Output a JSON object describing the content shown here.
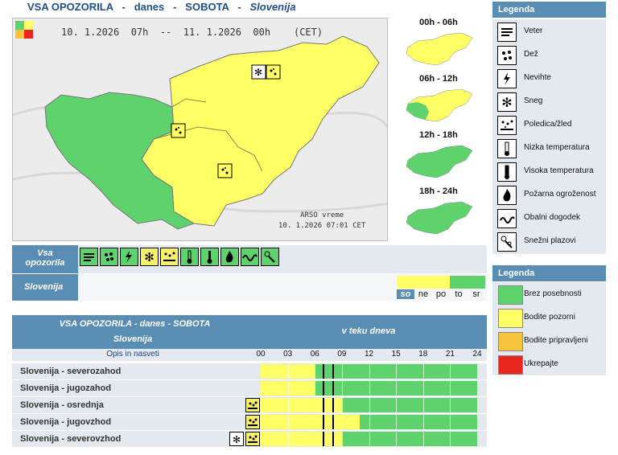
{
  "header": {
    "part1": "VSA OPOZORILA",
    "sep1": "-",
    "part2": "danes",
    "sep2": "-",
    "part3": "SOBOTA",
    "sep3": "-",
    "part4": "Slovenija"
  },
  "map": {
    "date_range": "10. 1.2026  07h  --  11. 1.2026  00h    (CET)",
    "credit_line1": "ARSO vreme",
    "credit_line2": "10. 1.2026  07:01 CET"
  },
  "slots": [
    {
      "label": "00h - 06h"
    },
    {
      "label": "06h - 12h"
    },
    {
      "label": "12h - 18h"
    },
    {
      "label": "18h - 24h"
    }
  ],
  "legend1": {
    "title": "Legenda",
    "items": [
      {
        "label": "Veter",
        "icon": "wind-icon"
      },
      {
        "label": "Dež",
        "icon": "rain-icon"
      },
      {
        "label": "Nevihte",
        "icon": "thunderstorm-icon"
      },
      {
        "label": "Sneg",
        "icon": "snow-icon"
      },
      {
        "label": "Poledica/žled",
        "icon": "ice-icon"
      },
      {
        "label": "Nizka temperatura",
        "icon": "low-temp-icon"
      },
      {
        "label": "Visoka temperatura",
        "icon": "high-temp-icon"
      },
      {
        "label": "Požarna ogroženost",
        "icon": "fire-icon"
      },
      {
        "label": "Obalni dogodek",
        "icon": "coastal-icon"
      },
      {
        "label": "Snežni plazovi",
        "icon": "avalanche-icon"
      }
    ]
  },
  "legend2": {
    "title": "Legenda",
    "items": [
      {
        "label": "Brez posebnosti",
        "color": "#5ed26c"
      },
      {
        "label": "Bodite pozorni",
        "color": "#ffff66"
      },
      {
        "label": "Bodite pripravljeni",
        "color": "#f5c43c"
      },
      {
        "label": "Ukrepajte",
        "color": "#e8251e"
      }
    ]
  },
  "band": {
    "all_line1": "Vsa",
    "all_line2": "opozorila",
    "region": "Slovenija",
    "days": [
      "so",
      "ne",
      "po",
      "to",
      "sr"
    ],
    "selected_day": "so"
  },
  "table": {
    "title_line1": "VSA OPOZORILA - danes - SOBOTA",
    "title_line2": "Slovenija",
    "during_day": "v teku dneva",
    "desc_header": "Opis in nasveti",
    "hours": [
      "00",
      "03",
      "06",
      "09",
      "12",
      "15",
      "18",
      "21",
      "24"
    ],
    "rows": [
      {
        "name": "Slovenija - severozahod",
        "yellow_until": 6,
        "icons": []
      },
      {
        "name": "Slovenija - jugozahod",
        "yellow_until": 6,
        "icons": []
      },
      {
        "name": "Slovenija - osrednja",
        "yellow_until": 9,
        "icons": [
          "ice-icon"
        ]
      },
      {
        "name": "Slovenija - jugovzhod",
        "yellow_until": 11,
        "icons": [
          "ice-icon"
        ]
      },
      {
        "name": "Slovenija - severovzhod",
        "yellow_until": 9,
        "icons": [
          "snow-icon",
          "ice-icon"
        ]
      }
    ]
  },
  "colors": {
    "green": "#5ed26c",
    "yellow": "#ffff66",
    "header_blue": "#5a8db3",
    "title_blue": "#1f4e8c"
  }
}
